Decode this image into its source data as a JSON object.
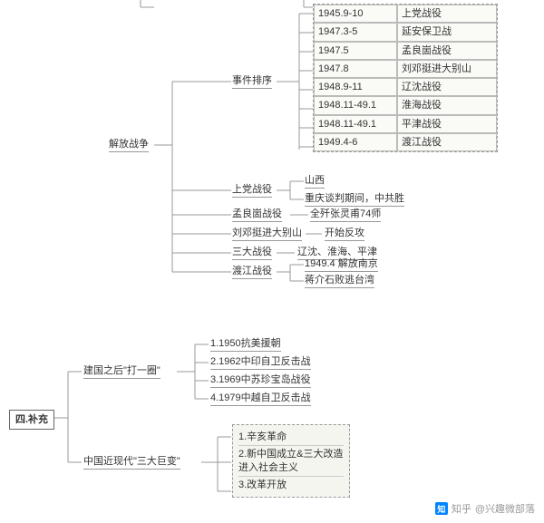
{
  "root": {
    "label": "四.补充"
  },
  "liberation_war": {
    "label": "解放战争",
    "events_label": "事件排序",
    "events": [
      {
        "date": "1945.9-10",
        "name": "上党战役"
      },
      {
        "date": "1947.3-5",
        "name": "延安保卫战"
      },
      {
        "date": "1947.5",
        "name": "孟良崮战役"
      },
      {
        "date": "1947.8",
        "name": "刘邓挺进大别山"
      },
      {
        "date": "1948.9-11",
        "name": "辽沈战役"
      },
      {
        "date": "1948.11-49.1",
        "name": "淮海战役"
      },
      {
        "date": "1948.11-49.1",
        "name": "平津战役"
      },
      {
        "date": "1949.4-6",
        "name": "渡江战役"
      }
    ],
    "shangdang": {
      "label": "上党战役",
      "a": "山西",
      "b": "重庆谈判期间，中共胜"
    },
    "menglianggu": {
      "label": "孟良崮战役",
      "note": "全歼张灵甫74师"
    },
    "liudeng": {
      "label": "刘邓挺进大别山",
      "note": "开始反攻"
    },
    "three_campaigns": {
      "label": "三大战役",
      "note": "辽沈、淮海、平津"
    },
    "dujiang": {
      "label": "渡江战役",
      "a": "1949.4 解放南京",
      "b": "蒋介石败逃台湾"
    }
  },
  "post_founding": {
    "label": "建国之后\"打一圈\"",
    "items": [
      "1.1950抗美援朝",
      "2.1962中印自卫反击战",
      "3.1969中苏珍宝岛战役",
      "4.1979中越自卫反击战"
    ]
  },
  "three_changes": {
    "label": "中国近现代\"三大巨变\"",
    "items": [
      "1.辛亥革命",
      "2.新中国成立&三大改造\n进入社会主义",
      "3.改革开放"
    ]
  },
  "watermark": {
    "site": "知乎",
    "user": "@兴趣微部落"
  }
}
